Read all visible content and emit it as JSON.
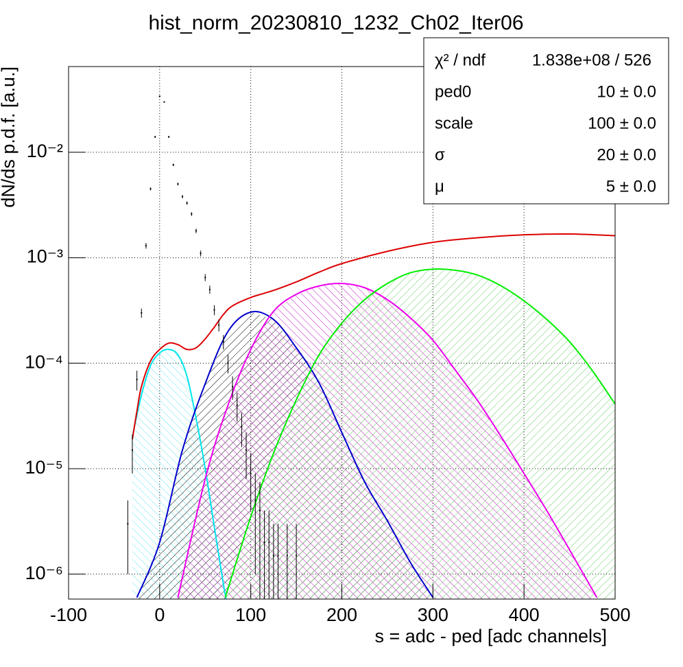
{
  "chart_data": {
    "type": "line",
    "title": "hist_norm_20230810_1232_Ch02_Iter06",
    "x_label": "s = adc - ped [adc channels]",
    "y_label": "dN/ds p.d.f. [a.u.]",
    "log_y": true,
    "grid": true,
    "xlim": [
      -100,
      500
    ],
    "xticks": [
      -100,
      0,
      100,
      200,
      300,
      400,
      500
    ],
    "ylim": [
      5.8e-07,
      0.065
    ],
    "yticks": [
      {
        "value": 1e-06,
        "label": "10⁻⁶"
      },
      {
        "value": 1e-05,
        "label": "10⁻⁵"
      },
      {
        "value": 0.0001,
        "label": "10⁻⁴"
      },
      {
        "value": 0.001,
        "label": "10⁻³"
      },
      {
        "value": 0.01,
        "label": "10⁻²"
      }
    ],
    "histogram": {
      "color": "#000000",
      "x": [
        -35,
        -30,
        -25,
        -20,
        -15,
        -10,
        -5,
        0,
        5,
        10,
        15,
        20,
        25,
        30,
        35,
        40,
        45,
        50,
        55,
        60,
        65,
        70,
        75,
        80,
        85,
        90,
        95,
        100,
        105,
        110,
        115,
        120,
        125,
        130,
        140,
        150
      ],
      "values": [
        3e-06,
        1.5e-05,
        7e-05,
        0.0003,
        0.0013,
        0.0045,
        0.014,
        0.034,
        0.03,
        0.014,
        0.0076,
        0.005,
        0.0038,
        0.0033,
        0.0026,
        0.0018,
        0.0011,
        0.00065,
        0.0005,
        0.00032,
        0.00023,
        0.00016,
        0.0001,
        6e-05,
        4e-05,
        2.5e-05,
        1.5e-05,
        9e-06,
        5e-06,
        4e-06,
        2e-06,
        2e-06,
        1.5e-06,
        1.5e-06,
        1.5e-06,
        1.5e-06
      ],
      "errors": [
        2e-06,
        6e-06,
        1.5e-05,
        3e-05,
        8e-05,
        0.00015,
        0.0003,
        0.0004,
        0.0004,
        0.0003,
        0.0002,
        0.00015,
        0.00013,
        0.00012,
        0.00011,
        9e-05,
        7e-05,
        5e-05,
        4.5e-05,
        3.5e-05,
        3e-05,
        2.5e-05,
        2e-05,
        1.5e-05,
        1.2e-05,
        9e-06,
        7e-06,
        5e-06,
        4e-06,
        3.5e-06,
        2e-06,
        2e-06,
        1.5e-06,
        1.5e-06,
        1.5e-06,
        1.5e-06
      ]
    },
    "series": [
      {
        "color": "#00e5ee",
        "hatch_color": "#5ee8f0",
        "x": [
          -30,
          -20,
          -10,
          0,
          10,
          20,
          30,
          40,
          50,
          60,
          70,
          73
        ],
        "values": [
          2e-05,
          5e-05,
          9.5e-05,
          0.000125,
          0.000135,
          0.00012,
          7.5e-05,
          3e-05,
          1e-05,
          2.8e-06,
          8e-07,
          5.8e-07
        ]
      },
      {
        "color": "#0000cc",
        "hatch_color": "#000000",
        "x": [
          -25,
          0,
          25,
          50,
          75,
          100,
          125,
          150,
          175,
          200,
          225,
          250,
          275,
          300
        ],
        "values": [
          6e-07,
          2e-06,
          1.5e-05,
          6.4e-05,
          0.0002,
          0.000305,
          0.00026,
          0.00014,
          6.5e-05,
          2.2e-05,
          7.5e-06,
          3.2e-06,
          1.3e-06,
          6e-07
        ]
      },
      {
        "color": "#ee00ee",
        "hatch_color": "#cc33cc",
        "x": [
          20,
          50,
          75,
          100,
          125,
          150,
          175,
          200,
          225,
          250,
          275,
          300,
          325,
          350,
          375,
          400,
          425,
          450,
          480
        ],
        "values": [
          6e-07,
          8e-06,
          4e-05,
          0.000135,
          0.00031,
          0.00045,
          0.00054,
          0.00057,
          0.00052,
          0.0004,
          0.00027,
          0.000165,
          8.5e-05,
          4.3e-05,
          2e-05,
          9e-06,
          4e-06,
          1.7e-06,
          6e-07
        ]
      },
      {
        "color": "#00ee00",
        "hatch_color": "#66cc66",
        "x": [
          72,
          100,
          125,
          150,
          175,
          200,
          225,
          250,
          275,
          300,
          325,
          350,
          375,
          400,
          425,
          450,
          475,
          500
        ],
        "values": [
          6e-07,
          3.5e-06,
          1.4e-05,
          4.5e-05,
          0.00012,
          0.00024,
          0.0004,
          0.00057,
          0.00072,
          0.00078,
          0.00076,
          0.00068,
          0.00054,
          0.00039,
          0.00026,
          0.00016,
          8.5e-05,
          4.1e-05
        ]
      },
      {
        "color": "#dd0000",
        "x": [
          -30,
          -25,
          -20,
          -10,
          0,
          10,
          20,
          30,
          40,
          50,
          60,
          70,
          80,
          100,
          125,
          150,
          175,
          200,
          250,
          300,
          350,
          400,
          450,
          500
        ],
        "values": [
          1.9e-05,
          3.5e-05,
          6e-05,
          0.000105,
          0.000135,
          0.000155,
          0.00015,
          0.000135,
          0.00014,
          0.00017,
          0.00022,
          0.00029,
          0.00035,
          0.00042,
          0.00049,
          0.00059,
          0.00073,
          0.00088,
          0.00115,
          0.0014,
          0.00155,
          0.00165,
          0.00168,
          0.00162
        ]
      }
    ],
    "stats": [
      {
        "label": "χ² / ndf",
        "value": "1.838e+08 / 526"
      },
      {
        "label": "ped0",
        "value": "10 ± 0.0"
      },
      {
        "label": "scale",
        "value": "100 ± 0.0"
      },
      {
        "label": "σ",
        "value": "20 ± 0.0"
      },
      {
        "label": "μ",
        "value": "5 ± 0.0"
      }
    ]
  }
}
